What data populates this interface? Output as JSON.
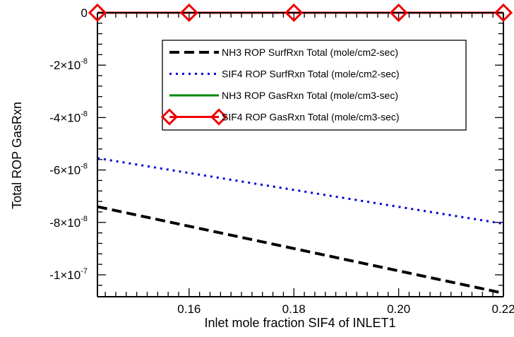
{
  "chart_data": {
    "type": "line",
    "xlabel": "Inlet mole fraction SIF4 of INLET1",
    "ylabel": "Total ROP GasRxn",
    "xlim": [
      0.1425,
      0.22
    ],
    "ylim": [
      -1.07e-07,
      0.0
    ],
    "x_ticks": [
      {
        "value": 0.16,
        "label": "0.16"
      },
      {
        "value": 0.18,
        "label": "0.18"
      },
      {
        "value": 0.2,
        "label": "0.20"
      },
      {
        "value": 0.22,
        "label": "0.22"
      }
    ],
    "y_ticks": [
      {
        "value": 0.0,
        "mant": "0",
        "exp": ""
      },
      {
        "value": -2e-08,
        "mant": "-2×10",
        "exp": "-8"
      },
      {
        "value": -4e-08,
        "mant": "-4×10",
        "exp": "-8"
      },
      {
        "value": -6e-08,
        "mant": "-6×10",
        "exp": "-8"
      },
      {
        "value": -8e-08,
        "mant": "-8×10",
        "exp": "-8"
      },
      {
        "value": -1e-07,
        "mant": "-1×10",
        "exp": "-7"
      }
    ],
    "grid": false,
    "legend_position": "top-right",
    "series": [
      {
        "name": "NH3 ROP SurfRxn Total (mole/cm2-sec)",
        "color": "#000000",
        "style": "dashed",
        "marker": "none",
        "x": [
          0.1425,
          0.22
        ],
        "y": [
          -7.4e-08,
          -1.07e-07
        ]
      },
      {
        "name": "SIF4 ROP SurfRxn Total (mole/cm2-sec)",
        "color": "#0000dd",
        "style": "dotted",
        "marker": "none",
        "x": [
          0.1425,
          0.22
        ],
        "y": [
          -5.55e-08,
          -8.05e-08
        ]
      },
      {
        "name": "NH3 ROP GasRxn Total (mole/cm3-sec)",
        "color": "#008800",
        "style": "solid",
        "marker": "none",
        "x": [
          0.1425,
          0.22
        ],
        "y": [
          0.0,
          0.0
        ]
      },
      {
        "name": "SIF4 ROP GasRxn Total (mole/cm3-sec)",
        "color": "#ee0000",
        "style": "solid",
        "marker": "diamond",
        "x": [
          0.1425,
          0.16,
          0.18,
          0.2,
          0.22
        ],
        "y": [
          0.0,
          0.0,
          0.0,
          0.0,
          0.0
        ]
      }
    ]
  }
}
